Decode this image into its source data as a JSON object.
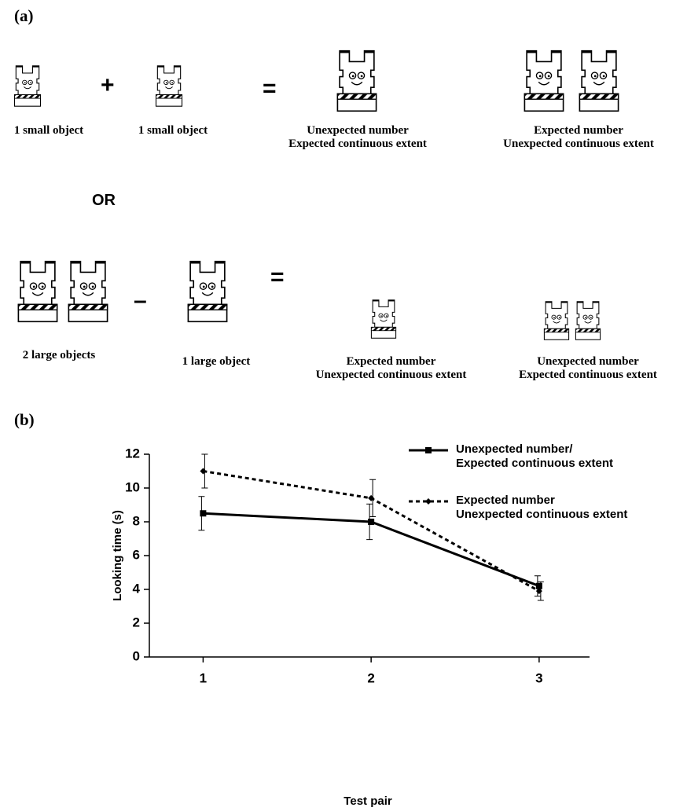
{
  "panel_a": {
    "label": "(a)",
    "row1": {
      "left": "1 small object",
      "operator": "+",
      "right": "1 small object",
      "equals": "=",
      "outcome1": "Unexpected number\nExpected continuous extent",
      "outcome2": "Expected number\nUnexpected continuous extent"
    },
    "or": "OR",
    "row2": {
      "left": "2 large objects",
      "operator": "–",
      "right": "1 large object",
      "equals": "=",
      "outcome1": "Expected number\nUnexpected continuous extent",
      "outcome2": "Unexpected number\nExpected continuous extent"
    }
  },
  "chart_data": {
    "type": "line",
    "panel_label": "(b)",
    "xlabel": "Test pair",
    "ylabel": "Looking time (s)",
    "x": [
      1,
      2,
      3
    ],
    "xlim": [
      0.68,
      3.3
    ],
    "xticks": [
      1,
      2,
      3
    ],
    "ylim": [
      0,
      12
    ],
    "yticks": [
      0,
      2,
      4,
      6,
      8,
      10,
      12
    ],
    "series": [
      {
        "name": "Unexpected number/\nExpected continuous extent",
        "color": "#000000",
        "dash": "solid",
        "marker": "square",
        "values": [
          8.5,
          8.0,
          4.2
        ],
        "errors": [
          1.0,
          1.05,
          0.6
        ]
      },
      {
        "name": "Expected number\nUnexpected continuous extent",
        "color": "#000000",
        "dash": "dotted",
        "marker": "diamond",
        "values": [
          11.0,
          9.4,
          3.9
        ],
        "errors": [
          1.0,
          1.1,
          0.55
        ]
      }
    ]
  }
}
